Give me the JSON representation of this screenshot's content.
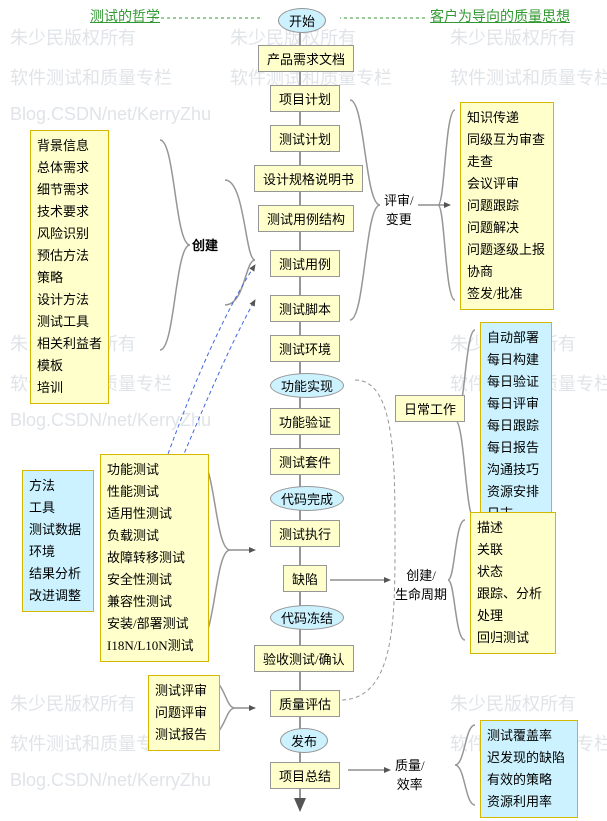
{
  "titles": {
    "left": "测试的哲学",
    "right": "客户为导向的质量思想"
  },
  "colors": {
    "title_left": "#339933",
    "title_right": "#339933",
    "yellow_bg": "#ffffcc",
    "blue_bg": "#ccf2ff",
    "border": "#969696",
    "line": "#969696",
    "dashed_blue": "#4169e1"
  },
  "flow": {
    "start": "开始",
    "boxes": [
      "产品需求文档",
      "项目计划",
      "测试计划",
      "设计规格说明书",
      "测试用例结构",
      "测试用例",
      "测试脚本",
      "测试环境",
      "功能验证",
      "测试套件",
      "测试执行",
      "缺陷",
      "验收测试/确认",
      "质量评估",
      "项目总结"
    ],
    "ovals": [
      "功能实现",
      "代码完成",
      "代码冻结",
      "发布"
    ]
  },
  "labels": {
    "create": "创建",
    "review": "评审/\n变更",
    "daily": "日常工作",
    "lifecycle": "创建/\n生命周期",
    "quality": "质量/\n效率"
  },
  "notes": {
    "n1": [
      "背景信息",
      "总体需求",
      "细节需求",
      "技术要求",
      "风险识别",
      "预估方法",
      "策略",
      "设计方法",
      "测试工具",
      "相关利益者",
      "模板",
      "培训"
    ],
    "n2": [
      "方法",
      "工具",
      "测试数据",
      "环境",
      "结果分析",
      "改进调整"
    ],
    "n3": [
      "功能测试",
      "性能测试",
      "适用性测试",
      "负载测试",
      "故障转移测试",
      "安全性测试",
      "兼容性测试",
      "安装/部署测试",
      "I18N/L10N测试"
    ],
    "n4": [
      "测试评审",
      "问题评审",
      "测试报告"
    ],
    "n5": [
      "知识传递",
      "同级互为审查",
      "走查",
      "会议评审",
      "问题跟踪",
      "问题解决",
      "问题逐级上报",
      "协商",
      "签发/批准"
    ],
    "n6": [
      "自动部署",
      "每日构建",
      "每日验证",
      "每日评审",
      "每日跟踪",
      "每日报告",
      "沟通技巧",
      "资源安排",
      "日志"
    ],
    "n7": [
      "描述",
      "关联",
      "状态",
      "跟踪、分析",
      "处理",
      "回归测试"
    ],
    "n8": [
      "测试覆盖率",
      "迟发现的缺陷",
      "有效的策略",
      "资源利用率"
    ]
  },
  "watermarks": [
    "朱少民版权所有",
    "软件测试和质量专栏",
    "Blog.CSDN/net/KerryZhu"
  ]
}
